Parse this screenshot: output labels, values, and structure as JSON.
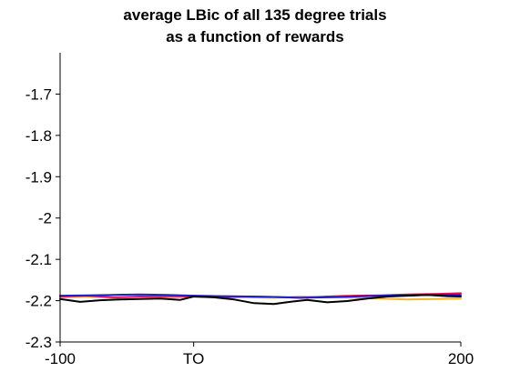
{
  "chart_data": {
    "type": "line",
    "title_lines": [
      "average LBic of all 135 degree trials",
      "as a function of rewards"
    ],
    "xlabel": "",
    "ylabel": "",
    "xlim": [
      -100,
      200
    ],
    "ylim": [
      -2.3,
      -1.6
    ],
    "x_ticks": [
      {
        "value": -100,
        "label": "-100"
      },
      {
        "value": 0,
        "label": "TO"
      },
      {
        "value": 200,
        "label": "200"
      }
    ],
    "y_ticks": [
      {
        "value": -1.7,
        "label": "-1.7"
      },
      {
        "value": -1.8,
        "label": "-1.8"
      },
      {
        "value": -1.9,
        "label": "-1.9"
      },
      {
        "value": -2.0,
        "label": "-2"
      },
      {
        "value": -2.1,
        "label": "-2.1"
      },
      {
        "value": -2.2,
        "label": "-2.2"
      },
      {
        "value": -2.3,
        "label": "-2.3"
      }
    ],
    "grid": false,
    "legend": "none",
    "series": [
      {
        "color": "#f5b331",
        "x": [
          -100,
          -80,
          -60,
          -40,
          -20,
          0,
          20,
          40,
          60,
          80,
          100,
          120,
          140,
          160,
          180,
          200
        ],
        "y": [
          -2.192,
          -2.19,
          -2.193,
          -2.191,
          -2.192,
          -2.19,
          -2.191,
          -2.192,
          -2.193,
          -2.19,
          -2.192,
          -2.193,
          -2.195,
          -2.197,
          -2.196,
          -2.195
        ]
      },
      {
        "color": "#e0115f",
        "x": [
          -100,
          -80,
          -60,
          -40,
          -20,
          0,
          20,
          40,
          60,
          80,
          100,
          120,
          140,
          160,
          180,
          200
        ],
        "y": [
          -2.19,
          -2.188,
          -2.192,
          -2.19,
          -2.189,
          -2.19,
          -2.192,
          -2.19,
          -2.191,
          -2.193,
          -2.19,
          -2.188,
          -2.187,
          -2.185,
          -2.184,
          -2.182
        ]
      },
      {
        "color": "#1f1fc4",
        "x": [
          -100,
          -80,
          -60,
          -40,
          -20,
          0,
          20,
          40,
          60,
          80,
          100,
          120,
          140,
          160,
          180,
          200
        ],
        "y": [
          -2.188,
          -2.187,
          -2.186,
          -2.185,
          -2.186,
          -2.188,
          -2.189,
          -2.19,
          -2.191,
          -2.193,
          -2.192,
          -2.19,
          -2.188,
          -2.187,
          -2.186,
          -2.186
        ]
      },
      {
        "color": "#000000",
        "x": [
          -100,
          -85,
          -70,
          -55,
          -40,
          -25,
          -10,
          0,
          15,
          30,
          45,
          60,
          72,
          85,
          100,
          115,
          130,
          145,
          160,
          175,
          190,
          200
        ],
        "y": [
          -2.196,
          -2.203,
          -2.199,
          -2.197,
          -2.196,
          -2.195,
          -2.198,
          -2.19,
          -2.192,
          -2.197,
          -2.206,
          -2.208,
          -2.203,
          -2.198,
          -2.204,
          -2.201,
          -2.195,
          -2.19,
          -2.188,
          -2.186,
          -2.189,
          -2.19
        ]
      }
    ]
  }
}
